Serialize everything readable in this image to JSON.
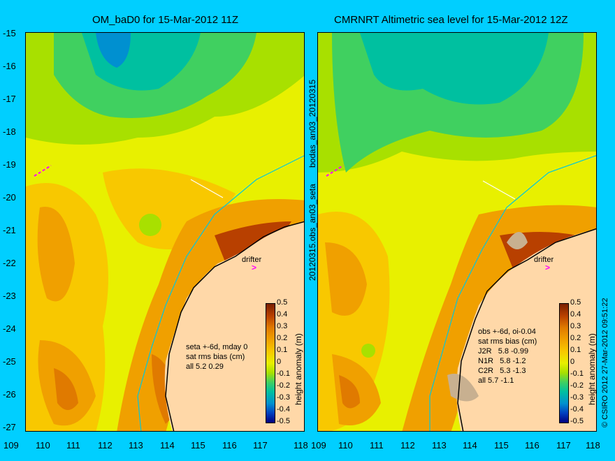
{
  "left_panel": {
    "title": "OM_baD0 for 15-Mar-2012 11Z",
    "stats_lines": "seta +-6d, mday 0\nsat rms bias (cm)\nall 5.2 0.29"
  },
  "right_panel": {
    "title": "CMRNRT Altimetric sea level  for 15-Mar-2012 12Z",
    "stats_lines": "obs +-6d, oi-0.04\nsat rms bias (cm)\nJ2R   5.8 -0.99\nN1R   5.8 -1.2\nC2R   5.3 -1.3\nall 5.7 -1.1"
  },
  "y_ticks": [
    "-15",
    "-16",
    "-17",
    "-18",
    "-19",
    "-20",
    "-21",
    "-22",
    "-23",
    "-24",
    "-25",
    "-26",
    "-27"
  ],
  "x_ticks": [
    "109",
    "110",
    "111",
    "112",
    "113",
    "114",
    "115",
    "116",
    "117",
    "118"
  ],
  "x_ticks_right": [
    "109",
    "110",
    "111",
    "112",
    "113",
    "114",
    "115",
    "116",
    "117",
    "118"
  ],
  "center_label": "20120315.obs_an03_seta",
  "center_label_top": "bodas_an03_20120315",
  "colorbar": {
    "label": "height anomaly (m)",
    "ticks": [
      "0.5",
      "0.4",
      "0.3",
      "0.2",
      "0.1",
      "0",
      "-0.1",
      "-0.2",
      "-0.3",
      "-0.4",
      "-0.5"
    ]
  },
  "drifter_label": "drifter",
  "credit": "© CSIRO 2012   27-Mar-2012 09:51:22",
  "colors": {
    "background": "#00cfff",
    "land": "#ffd8a8",
    "high": "#b84000",
    "mid": "#f8c800",
    "neutral": "#e8f000",
    "low": "#00c0a0",
    "drifter": "#ff00ff"
  }
}
